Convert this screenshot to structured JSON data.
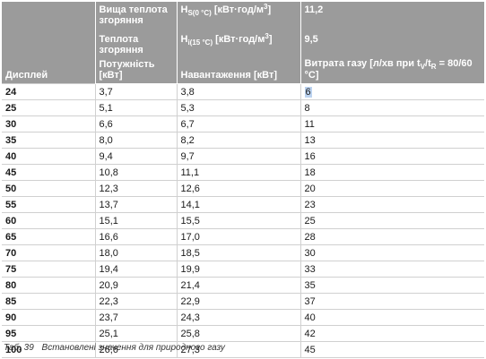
{
  "header": {
    "gross_heat_label": "Вища теплота згоряння",
    "net_heat_label": "Теплота згоряння",
    "hs_label": "H",
    "hs_sub": "S(0 °C)",
    "hs_unit_before": " [кВт·год/м",
    "hs_unit_sup": "3",
    "hs_unit_after": "]",
    "hi_label": "H",
    "hi_sub": "i(15 °C)",
    "hi_unit_before": " [кВт·год/м",
    "hi_unit_sup": "3",
    "hi_unit_after": "]",
    "hs_value": "11,2",
    "hi_value": "9,5",
    "col_display": "Дисплей",
    "col_power": "Потужність [кВт]",
    "col_load": "Навантаження [кВт]",
    "col_gas_prefix": "Витрата газу [л/хв при t",
    "col_gas_sub_v": "V",
    "col_gas_mid": "/t",
    "col_gas_sub_r": "R",
    "col_gas_suffix": " = 80/60 °C]"
  },
  "rows": [
    {
      "display": "24",
      "power": "3,7",
      "load": "3,8",
      "gas": "6"
    },
    {
      "display": "25",
      "power": "5,1",
      "load": "5,3",
      "gas": "8"
    },
    {
      "display": "30",
      "power": "6,6",
      "load": "6,7",
      "gas": "11"
    },
    {
      "display": "35",
      "power": "8,0",
      "load": "8,2",
      "gas": "13"
    },
    {
      "display": "40",
      "power": "9,4",
      "load": "9,7",
      "gas": "16"
    },
    {
      "display": "45",
      "power": "10,8",
      "load": "11,1",
      "gas": "18"
    },
    {
      "display": "50",
      "power": "12,3",
      "load": "12,6",
      "gas": "20"
    },
    {
      "display": "55",
      "power": "13,7",
      "load": "14,1",
      "gas": "23"
    },
    {
      "display": "60",
      "power": "15,1",
      "load": "15,5",
      "gas": "25"
    },
    {
      "display": "65",
      "power": "16,6",
      "load": "17,0",
      "gas": "28"
    },
    {
      "display": "70",
      "power": "18,0",
      "load": "18,5",
      "gas": "30"
    },
    {
      "display": "75",
      "power": "19,4",
      "load": "19,9",
      "gas": "33"
    },
    {
      "display": "80",
      "power": "20,9",
      "load": "21,4",
      "gas": "35"
    },
    {
      "display": "85",
      "power": "22,3",
      "load": "22,9",
      "gas": "37"
    },
    {
      "display": "90",
      "power": "23,7",
      "load": "24,3",
      "gas": "40"
    },
    {
      "display": "95",
      "power": "25,1",
      "load": "25,8",
      "gas": "42"
    },
    {
      "display": "100",
      "power": "26,6",
      "load": "27,3",
      "gas": "45"
    }
  ],
  "selected_cell": {
    "row": 0,
    "column": "gas"
  },
  "caption": {
    "number": "Таб. 39",
    "text": "Встановлені значення для природного газу"
  },
  "colors": {
    "header_bg": "#9b9b9b",
    "header_text": "#ffffff",
    "selection": "#bcd3f0"
  }
}
